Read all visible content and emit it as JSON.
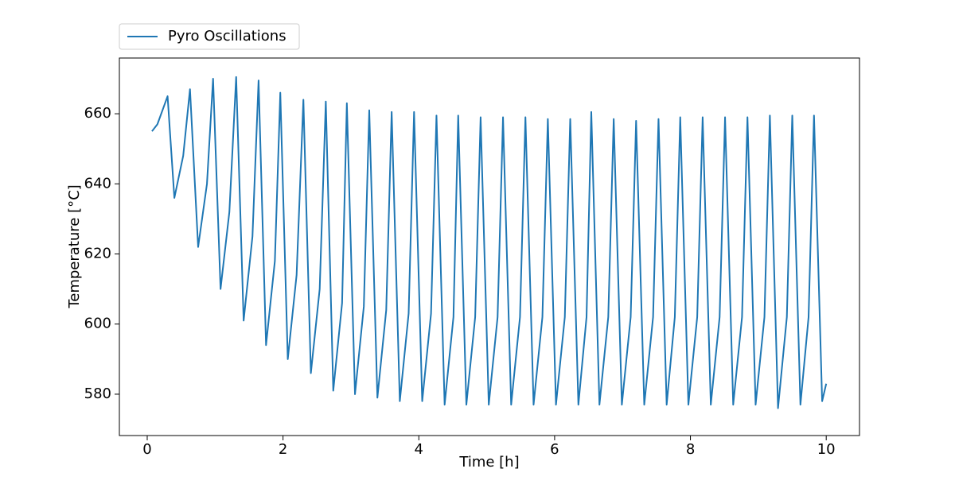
{
  "chart_data": {
    "type": "line",
    "xlabel": "Time [h]",
    "ylabel": "Temperature [°C]",
    "x": [
      0.07,
      0.15,
      0.3,
      0.4,
      0.53,
      0.63,
      0.75,
      0.88,
      0.97,
      1.08,
      1.21,
      1.31,
      1.42,
      1.55,
      1.64,
      1.75,
      1.88,
      1.96,
      2.07,
      2.2,
      2.3,
      2.41,
      2.54,
      2.63,
      2.74,
      2.87,
      2.94,
      3.06,
      3.19,
      3.27,
      3.39,
      3.52,
      3.6,
      3.72,
      3.85,
      3.93,
      4.05,
      4.18,
      4.26,
      4.38,
      4.51,
      4.58,
      4.7,
      4.83,
      4.91,
      5.03,
      5.16,
      5.24,
      5.36,
      5.49,
      5.57,
      5.69,
      5.82,
      5.9,
      6.02,
      6.15,
      6.23,
      6.35,
      6.47,
      6.54,
      6.66,
      6.79,
      6.87,
      6.99,
      7.12,
      7.2,
      7.32,
      7.45,
      7.53,
      7.65,
      7.77,
      7.85,
      7.97,
      8.1,
      8.18,
      8.3,
      8.43,
      8.51,
      8.63,
      8.76,
      8.84,
      8.96,
      9.09,
      9.17,
      9.29,
      9.42,
      9.5,
      9.62,
      9.74,
      9.82,
      9.94,
      10.0
    ],
    "series": [
      {
        "name": "Pyro Oscillations",
        "color": "#1f77b4",
        "values": [
          655,
          657,
          665,
          636,
          648,
          667,
          622,
          640,
          670,
          610,
          632,
          670.5,
          601,
          625,
          669.5,
          594,
          618,
          666,
          590,
          614,
          664,
          586,
          610,
          663.5,
          581,
          606,
          663,
          580,
          605,
          661,
          579,
          604,
          660.5,
          578,
          603,
          660.5,
          578,
          603,
          659.5,
          577,
          602,
          659.5,
          577,
          602,
          659,
          577,
          602,
          659,
          577,
          602,
          659,
          577,
          602,
          658.5,
          577,
          602,
          658.5,
          577,
          602,
          660.5,
          577,
          602,
          658.5,
          577,
          602,
          658,
          577,
          602,
          658.5,
          577,
          602,
          659,
          577,
          602,
          659,
          577,
          602,
          659,
          577,
          602,
          659,
          577,
          602,
          659.5,
          576,
          602,
          659.5,
          577,
          602,
          659.5,
          578,
          583
        ]
      }
    ],
    "xlim": [
      -0.41,
      10.49
    ],
    "xticks": [
      0,
      2,
      4,
      6,
      8,
      10
    ],
    "ylim": [
      568.2,
      675.9
    ],
    "yticks": [
      580,
      600,
      620,
      640,
      660
    ],
    "grid": false,
    "legend": "upper left outside"
  }
}
